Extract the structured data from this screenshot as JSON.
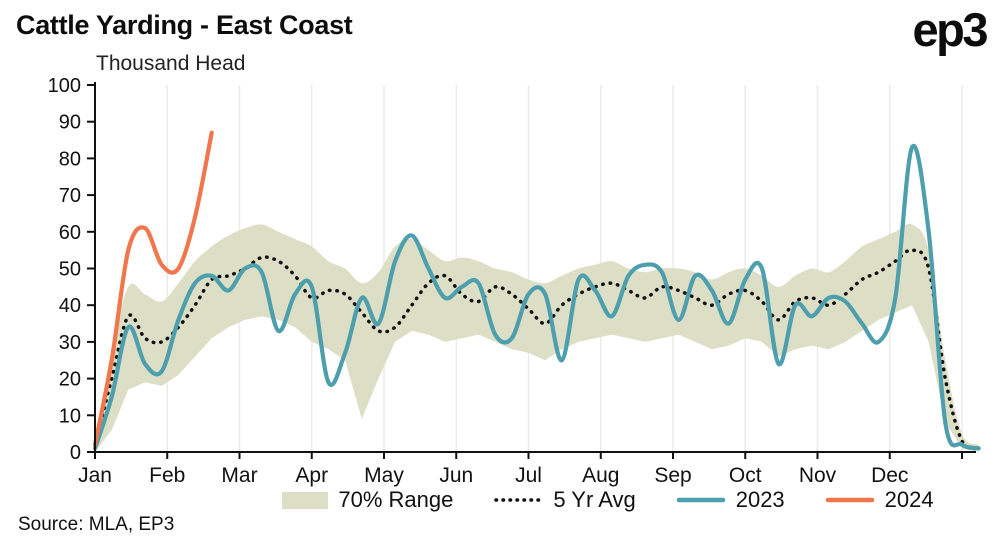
{
  "title": "Cattle Yarding - East Coast",
  "subtitle": "Thousand Head",
  "logo_text": "ep3",
  "source_note": "Source: MLA, EP3",
  "colors": {
    "band": "#dcdfc5",
    "avg": "#111111",
    "y2023": "#4e9fad",
    "y2024": "#f1764b",
    "axis": "#111111",
    "grid": "#ebebe6"
  },
  "legend": {
    "range_label": "70% Range",
    "avg_label": "5 Yr Avg",
    "y2023_label": "2023",
    "y2024_label": "2024"
  },
  "chart_data": {
    "type": "line",
    "title": "Cattle Yarding - East Coast",
    "subtitle": "Thousand Head",
    "xlabel": "",
    "ylabel": "Thousand Head",
    "ylim": [
      0,
      100
    ],
    "ytick_step": 10,
    "grid": "light vertical month gridlines",
    "legend_position": "bottom",
    "x_unit": "weekly observations across one calendar year",
    "weeks_per_year": 52,
    "x_tick_labels": [
      "Jan",
      "Feb",
      "Mar",
      "Apr",
      "May",
      "Jun",
      "Jul",
      "Aug",
      "Sep",
      "Oct",
      "Nov",
      "Dec"
    ],
    "series": [
      {
        "name": "70% Range",
        "style": "band",
        "color_key": "band",
        "lower": [
          0,
          6,
          17,
          19,
          18,
          21,
          26,
          31,
          34,
          36,
          37,
          36,
          34,
          30,
          28,
          25,
          9,
          20,
          30,
          33,
          32,
          30,
          31,
          32,
          30,
          28,
          27,
          25,
          28,
          30,
          31,
          32,
          31,
          30,
          31,
          32,
          30,
          28,
          29,
          31,
          30,
          26,
          28,
          29,
          28,
          30,
          33,
          36,
          38,
          40,
          30,
          8,
          1,
          0
        ],
        "upper": [
          3,
          28,
          45,
          43,
          41,
          46,
          52,
          56,
          59,
          61,
          62,
          60,
          58,
          56,
          52,
          50,
          46,
          49,
          56,
          58,
          55,
          52,
          53,
          52,
          50,
          49,
          47,
          46,
          48,
          50,
          51,
          52,
          50,
          49,
          50,
          50,
          49,
          47,
          49,
          50,
          48,
          45,
          48,
          50,
          49,
          52,
          56,
          58,
          60,
          62,
          55,
          25,
          5,
          2
        ]
      },
      {
        "name": "5 Yr Avg",
        "style": "dotted",
        "color_key": "avg",
        "values": [
          2,
          20,
          37,
          31,
          30,
          34,
          40,
          47,
          48,
          50,
          53,
          52,
          48,
          42,
          44,
          43,
          38,
          33,
          34,
          40,
          46,
          48,
          43,
          41,
          45,
          43,
          39,
          35,
          40,
          43,
          45,
          46,
          44,
          42,
          45,
          44,
          42,
          40,
          43,
          44,
          41,
          36,
          41,
          42,
          40,
          43,
          47,
          49,
          52,
          55,
          50,
          20,
          3,
          1
        ]
      },
      {
        "name": "2023",
        "style": "line",
        "color_key": "y2023",
        "values": [
          1,
          15,
          34,
          24,
          22,
          36,
          46,
          48,
          44,
          50,
          49,
          33,
          43,
          45,
          19,
          27,
          42,
          35,
          52,
          59,
          50,
          42,
          45,
          46,
          32,
          31,
          43,
          43,
          25,
          47,
          44,
          37,
          48,
          51,
          49,
          36,
          48,
          44,
          35,
          47,
          50,
          24,
          40,
          37,
          42,
          41,
          35,
          30,
          42,
          83,
          60,
          8,
          2,
          1
        ]
      },
      {
        "name": "2024",
        "style": "line",
        "color_key": "y2024",
        "values": [
          2,
          25,
          55,
          61,
          51,
          50,
          64,
          87
        ]
      }
    ]
  }
}
